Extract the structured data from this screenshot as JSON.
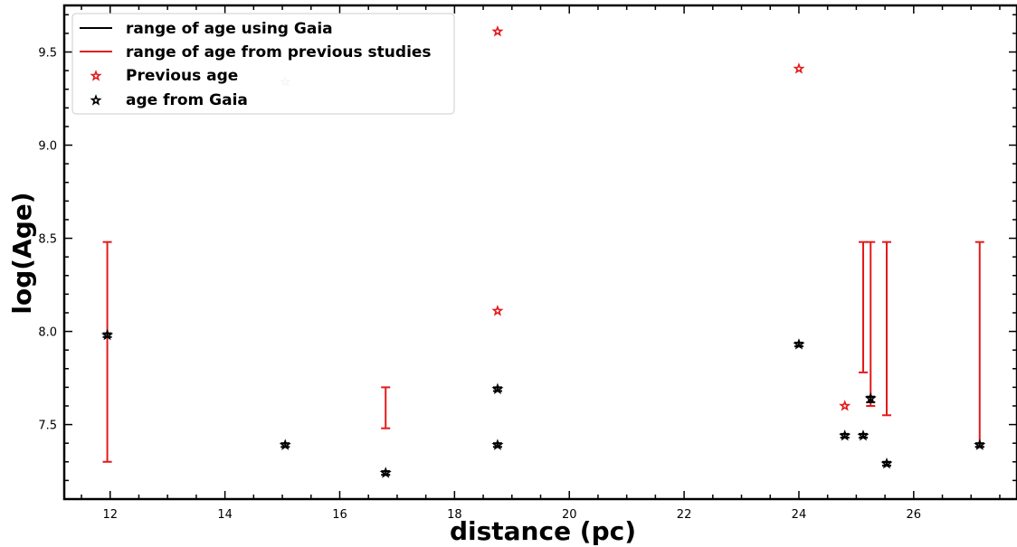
{
  "chart_data": {
    "type": "scatter",
    "xlabel": "distance (pc)",
    "ylabel": "log(Age)",
    "xlim": [
      11.2,
      27.8
    ],
    "ylim": [
      7.1,
      9.75
    ],
    "x_ticks": [
      12,
      14,
      16,
      18,
      20,
      22,
      24,
      26
    ],
    "y_ticks": [
      7.5,
      8.0,
      8.5,
      9.0,
      9.5
    ],
    "grid": false,
    "legend_position": "top-left",
    "series": [
      {
        "name": "range of age using Gaia",
        "kind": "errorbar",
        "color": "#000000",
        "ranges": [
          {
            "x": 11.95,
            "low": 7.97,
            "high": 7.99
          },
          {
            "x": 15.05,
            "low": 7.38,
            "high": 7.4
          },
          {
            "x": 16.8,
            "low": 7.23,
            "high": 7.25
          },
          {
            "x": 18.75,
            "low": 7.38,
            "high": 7.4
          },
          {
            "x": 18.75,
            "low": 7.68,
            "high": 7.7
          },
          {
            "x": 24.0,
            "low": 7.92,
            "high": 7.94
          },
          {
            "x": 24.8,
            "low": 7.43,
            "high": 7.45
          },
          {
            "x": 25.12,
            "low": 7.43,
            "high": 7.45
          },
          {
            "x": 25.25,
            "low": 7.62,
            "high": 7.65
          },
          {
            "x": 25.53,
            "low": 7.28,
            "high": 7.3
          },
          {
            "x": 27.15,
            "low": 7.38,
            "high": 7.4
          }
        ]
      },
      {
        "name": "range of age from previous studies",
        "kind": "errorbar",
        "color": "#e41a1c",
        "ranges": [
          {
            "x": 11.95,
            "low": 7.3,
            "high": 8.48
          },
          {
            "x": 16.8,
            "low": 7.48,
            "high": 7.7
          },
          {
            "x": 25.12,
            "low": 7.78,
            "high": 8.48
          },
          {
            "x": 25.25,
            "low": 7.6,
            "high": 8.48
          },
          {
            "x": 25.53,
            "low": 7.55,
            "high": 8.48
          },
          {
            "x": 27.15,
            "low": 7.38,
            "high": 8.48
          }
        ]
      },
      {
        "name": "Previous age",
        "kind": "marker",
        "color": "#e41a1c",
        "points": [
          {
            "x": 18.75,
            "y": 9.61
          },
          {
            "x": 18.75,
            "y": 8.11
          },
          {
            "x": 24.0,
            "y": 9.41
          },
          {
            "x": 24.8,
            "y": 7.6
          },
          {
            "x": 15.05,
            "y": 9.34,
            "faded": true
          }
        ]
      },
      {
        "name": "age from Gaia",
        "kind": "marker",
        "color": "#000000",
        "points": [
          {
            "x": 11.95,
            "y": 7.98
          },
          {
            "x": 15.05,
            "y": 7.39
          },
          {
            "x": 16.8,
            "y": 7.24
          },
          {
            "x": 18.75,
            "y": 7.39
          },
          {
            "x": 18.75,
            "y": 7.69
          },
          {
            "x": 24.0,
            "y": 7.93
          },
          {
            "x": 24.8,
            "y": 7.44
          },
          {
            "x": 25.12,
            "y": 7.44
          },
          {
            "x": 25.25,
            "y": 7.64
          },
          {
            "x": 25.53,
            "y": 7.29
          },
          {
            "x": 27.15,
            "y": 7.39
          }
        ]
      }
    ]
  }
}
